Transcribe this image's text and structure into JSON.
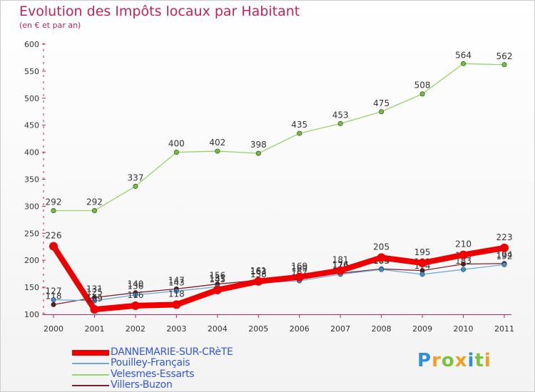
{
  "title": "Evolution des Impôts locaux par Habitant",
  "subtitle": "(en € et par an)",
  "logo": "Proxiti",
  "colors": {
    "title": "#c0235a",
    "axis": "#d01c55",
    "legend_text": "#3355dd"
  },
  "chart_data": {
    "type": "line",
    "title": "Evolution des Impôts locaux par Habitant",
    "ylabel": "(en € et par an)",
    "xlabel": "",
    "ylim": [
      100,
      600
    ],
    "y_ticks": [
      100,
      150,
      200,
      250,
      300,
      350,
      400,
      450,
      500,
      550,
      600
    ],
    "x": [
      "2000",
      "2001",
      "2002",
      "2003",
      "2004",
      "2005",
      "2006",
      "2007",
      "2008",
      "2009",
      "2010",
      "2011"
    ],
    "legend_position": "bottom-left",
    "series": [
      {
        "name": "Villers-Buzon",
        "color": "#7a2230",
        "marker": "#5c1a24",
        "width": 1.3,
        "values": [
          118,
          131,
          140,
          147,
          156,
          163,
          169,
          176,
          184,
          181,
          193,
          194
        ],
        "labels": [
          "118",
          "131",
          "140",
          "147",
          "156",
          "163",
          "169",
          "176",
          "184",
          "181",
          "193",
          "194"
        ]
      },
      {
        "name": "Pouilley-Français",
        "color": "#6fa8d8",
        "marker": "#3d8fd1",
        "width": 1.3,
        "values": [
          127,
          125,
          136,
          143,
          151,
          158,
          162,
          174,
          183,
          174,
          183,
          192
        ],
        "labels": [
          "127",
          "125",
          "136",
          "143",
          "151",
          "158",
          "162",
          "174",
          "183",
          "174",
          "183",
          "192"
        ]
      },
      {
        "name": "Velesmes-Essarts",
        "color": "#99d36b",
        "marker": "#72bf3a",
        "width": 1.3,
        "values": [
          292,
          292,
          337,
          400,
          402,
          398,
          435,
          453,
          475,
          508,
          564,
          562
        ],
        "labels": [
          "292",
          "292",
          "337",
          "400",
          "402",
          "398",
          "435",
          "453",
          "475",
          "508",
          "564",
          "562"
        ]
      },
      {
        "name": "DANNEMARIE-SUR-CRèTE",
        "color": "#ee0000",
        "marker": "#ee0000",
        "width": 8,
        "values": [
          226,
          109,
          116,
          118,
          145,
          161,
          169,
          181,
          205,
          195,
          210,
          223
        ],
        "labels": [
          "226",
          "109",
          "116",
          "118",
          "145",
          "161",
          "169",
          "181",
          "205",
          "195",
          "210",
          "223"
        ]
      }
    ],
    "legend": [
      "DANNEMARIE-SUR-CRèTE",
      "Pouilley-Français",
      "Velesmes-Essarts",
      "Villers-Buzon"
    ]
  }
}
